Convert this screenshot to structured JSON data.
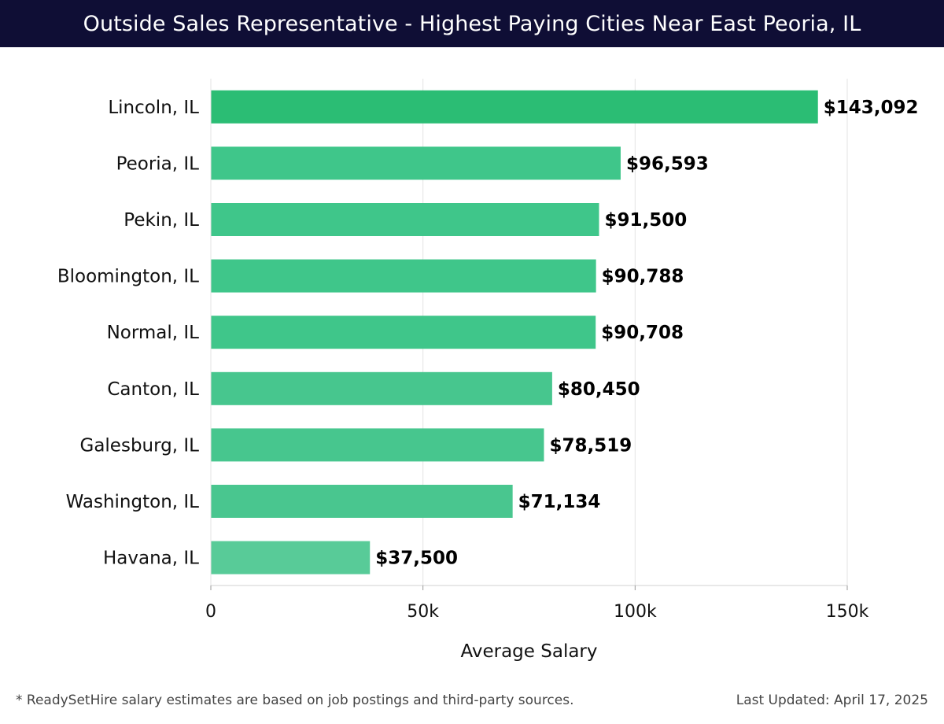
{
  "header": {
    "title": "Outside Sales Representative - Highest Paying Cities Near East Peoria, IL"
  },
  "chart_data": {
    "type": "bar",
    "orientation": "horizontal",
    "title": "Outside Sales Representative - Highest Paying Cities Near East Peoria, IL",
    "xlabel": "Average Salary",
    "ylabel": "",
    "xlim": [
      0,
      150000
    ],
    "xticks": [
      0,
      50000,
      100000,
      150000
    ],
    "xtick_labels": [
      "0",
      "50k",
      "100k",
      "150k"
    ],
    "grid": true,
    "categories": [
      "Lincoln, IL",
      "Peoria, IL",
      "Pekin, IL",
      "Bloomington, IL",
      "Normal, IL",
      "Canton, IL",
      "Galesburg, IL",
      "Washington, IL",
      "Havana, IL"
    ],
    "values": [
      143092,
      96593,
      91500,
      90788,
      90708,
      80450,
      78519,
      71134,
      37500
    ],
    "value_labels": [
      "$143,092",
      "$96,593",
      "$91,500",
      "$90,788",
      "$90,708",
      "$80,450",
      "$78,519",
      "$71,134",
      "$37,500"
    ],
    "colors": [
      "#2bbd74",
      "#3fc68a",
      "#3fc68a",
      "#3fc68a",
      "#3fc68a",
      "#47c68e",
      "#47c68e",
      "#49c68f",
      "#58cb98"
    ]
  },
  "footer": {
    "note": "* ReadySetHire salary estimates are based on job postings and third-party sources.",
    "updated": "Last Updated: April 17, 2025"
  }
}
